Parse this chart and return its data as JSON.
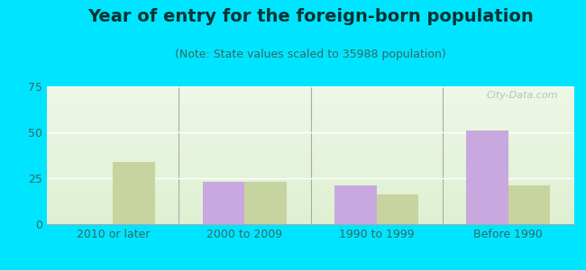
{
  "title": "Year of entry for the foreign-born population",
  "subtitle": "(Note: State values scaled to 35988 population)",
  "categories": [
    "2010 or later",
    "2000 to 2009",
    "1990 to 1999",
    "Before 1990"
  ],
  "series_35988": [
    0,
    23,
    21,
    51
  ],
  "series_alabama": [
    34,
    23,
    16,
    21
  ],
  "color_35988": "#c9a8e0",
  "color_alabama": "#c8d4a0",
  "ylim": [
    0,
    75
  ],
  "yticks": [
    0,
    25,
    50,
    75
  ],
  "bar_width": 0.32,
  "bg_outer": "#00e5ff",
  "title_fontsize": 14,
  "subtitle_fontsize": 9,
  "tick_fontsize": 9,
  "legend_fontsize": 10,
  "watermark": "City-Data.com",
  "title_color": "#003333",
  "subtitle_color": "#336666",
  "tick_color": "#336666"
}
